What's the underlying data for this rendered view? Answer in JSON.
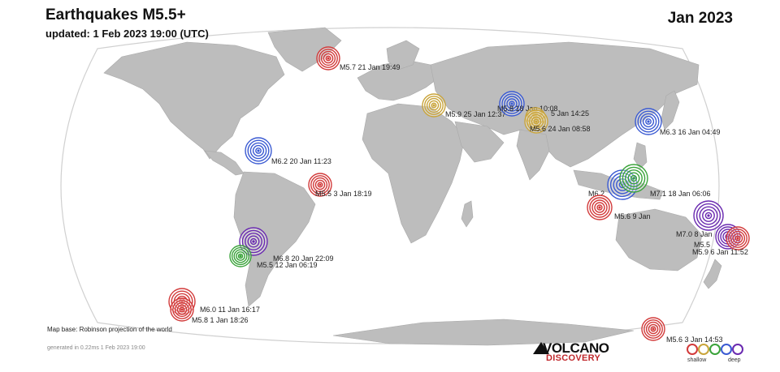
{
  "header": {
    "title": "Earthquakes M5.5+",
    "updated": "updated:  1 Feb 2023 19:00 (UTC)",
    "month": "Jan 2023"
  },
  "footer": {
    "map_base": "Map base: Robinson projection of the world",
    "generated": "generated in 0.22ms  1 Feb 2023 19:00",
    "brand_top": "VOLCANO",
    "brand_bottom": "DISCOVERY"
  },
  "legend": {
    "shallow_label": "shallow",
    "deep_label": "deep",
    "depth_colors": [
      "#d23a3a",
      "#c9a43a",
      "#3aa33a",
      "#3a5ad2",
      "#6a2ab0"
    ]
  },
  "colors": {
    "land": "#bdbdbd",
    "ocean": "#ffffff",
    "outline": "#cfcfcf"
  },
  "quakes": [
    {
      "label": "M5.7  21 Jan 19:49",
      "depth": "shallow",
      "color": "#d23a3a"
    },
    {
      "label": "M5.9  25 Jan 12:37",
      "depth": "intermediate",
      "color": "#c9a43a"
    },
    {
      "label": "M5.8  18 Jan 10:08",
      "depth": "deep",
      "color": "#3a5ad2"
    },
    {
      "label": "5 Jan 14:25",
      "depth": "intermediate",
      "color": "#c9a43a"
    },
    {
      "label": "M5.6  24 Jan 08:58",
      "depth": "intermediate",
      "color": "#c9a43a"
    },
    {
      "label": "M6.3  16 Jan 04:49",
      "depth": "deep",
      "color": "#3a5ad2"
    },
    {
      "label": "M6.2  20 Jan 11:23",
      "depth": "deep",
      "color": "#3a5ad2"
    },
    {
      "label": "M5.5  3 Jan 18:19",
      "depth": "shallow",
      "color": "#d23a3a"
    },
    {
      "label": "M6.2",
      "depth": "deep",
      "color": "#3a5ad2"
    },
    {
      "label": "M7.1  18 Jan 06:06",
      "depth": "intermediate",
      "color": "#3aa33a"
    },
    {
      "label": "M5.6  9 Jan",
      "depth": "shallow",
      "color": "#d23a3a"
    },
    {
      "label": "M7.0  8 Jan",
      "depth": "intermediate",
      "color": "#6a2ab0"
    },
    {
      "label": "M5.5",
      "depth": "deep",
      "color": "#6a2ab0"
    },
    {
      "label": "M5.9  6 Jan 11:52",
      "depth": "shallow",
      "color": "#d23a3a"
    },
    {
      "label": "M6.8  20 Jan 22:09",
      "depth": "deep",
      "color": "#6a2ab0"
    },
    {
      "label": "M5.5  12 Jan 06:19",
      "depth": "intermediate",
      "color": "#3aa33a"
    },
    {
      "label": "M6.0  11 Jan 16:17",
      "depth": "shallow",
      "color": "#d23a3a"
    },
    {
      "label": "M5.8  1 Jan 18:26",
      "depth": "shallow",
      "color": "#d23a3a"
    },
    {
      "label": "M5.6  3 Jan 14:53",
      "depth": "shallow",
      "color": "#d23a3a"
    }
  ]
}
